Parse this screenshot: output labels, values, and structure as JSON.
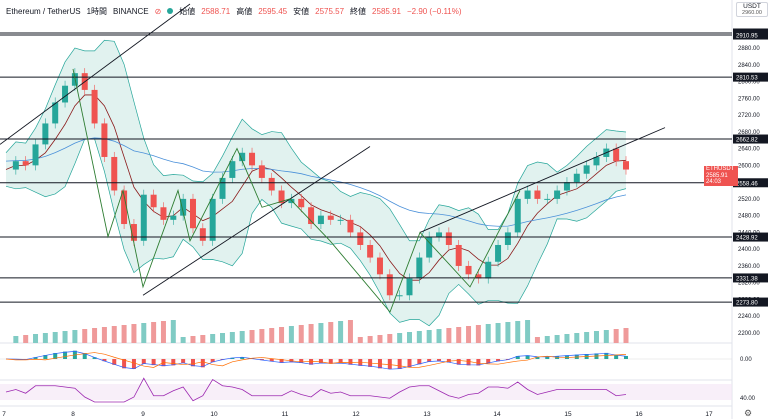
{
  "header": {
    "symbol": "Ethereum / TetherUS",
    "interval": "1時間",
    "exchange": "BINANCE",
    "open_label": "始値",
    "open_value": "2588.71",
    "high_label": "高値",
    "high_value": "2595.45",
    "low_label": "安値",
    "low_value": "2575.57",
    "close_label": "終値",
    "close_value": "2585.91",
    "change": "−2.90 (−0.11%)"
  },
  "currency_button": {
    "line1": "USDT",
    "line2": "2960.00"
  },
  "symbol_tag": "ETHUSDT",
  "current_price_tag": {
    "price": "2585.91",
    "countdown": "24:03"
  },
  "horizontal_levels": [
    {
      "label": "2915.78",
      "value": 2915.78
    },
    {
      "label": "2910.95",
      "value": 2910.95
    },
    {
      "label": "2810.53",
      "value": 2810.53
    },
    {
      "label": "2662.82",
      "value": 2662.82
    },
    {
      "label": "2558.46",
      "value": 2558.46
    },
    {
      "label": "2428.92",
      "value": 2428.92
    },
    {
      "label": "2331.38",
      "value": 2331.38
    },
    {
      "label": "2273.80",
      "value": 2273.8
    }
  ],
  "price_axis_ticks": [
    "2880.00",
    "2840.00",
    "2800.00",
    "2760.00",
    "2720.00",
    "2680.00",
    "2640.00",
    "2600.00",
    "2520.00",
    "2480.00",
    "2440.00",
    "2400.00",
    "2360.00",
    "2320.00",
    "2280.00",
    "2240.00",
    "2200.00"
  ],
  "macd_axis_label": "0.00",
  "rsi_axis_label": "40.00",
  "time_axis_labels": [
    "7",
    "8",
    "9",
    "10",
    "11",
    "12",
    "13",
    "14",
    "15",
    "16",
    "17"
  ],
  "icons": [
    "eye-off-icon",
    "settings-icon"
  ],
  "colors": {
    "up": "#26a69a",
    "down": "#ef5350",
    "level_line": "#131722",
    "trend_line": "#131722",
    "band_fill": "#d4ece8",
    "mid_band": "#8b1a1a",
    "ema_blue": "#4a90d9",
    "rsi": "#9c27b0",
    "volume_up": "#80cbc4",
    "volume_down": "#ef9a9a"
  },
  "chart_data": {
    "type": "candlestick",
    "series_name": "ETHUSDT 1h",
    "y_range": [
      2180,
      2965
    ],
    "x_tick_labels": [
      "7",
      "8",
      "9",
      "10",
      "11",
      "12",
      "13",
      "14",
      "15",
      "16",
      "17"
    ],
    "price_path_close": [
      2590,
      2610,
      2600,
      2650,
      2700,
      2750,
      2790,
      2820,
      2780,
      2700,
      2620,
      2540,
      2460,
      2420,
      2530,
      2500,
      2470,
      2480,
      2520,
      2450,
      2420,
      2520,
      2570,
      2610,
      2630,
      2600,
      2570,
      2540,
      2510,
      2520,
      2500,
      2460,
      2480,
      2470,
      2470,
      2440,
      2410,
      2380,
      2340,
      2290,
      2290,
      2330,
      2380,
      2430,
      2440,
      2410,
      2360,
      2340,
      2330,
      2370,
      2410,
      2440,
      2520,
      2540,
      2520,
      2520,
      2540,
      2560,
      2580,
      2600,
      2620,
      2640,
      2610,
      2590
    ],
    "horizontal_levels": [
      2915.78,
      2910.95,
      2810.53,
      2662.82,
      2558.46,
      2428.92,
      2331.38,
      2273.8
    ],
    "current_price": 2585.91
  }
}
